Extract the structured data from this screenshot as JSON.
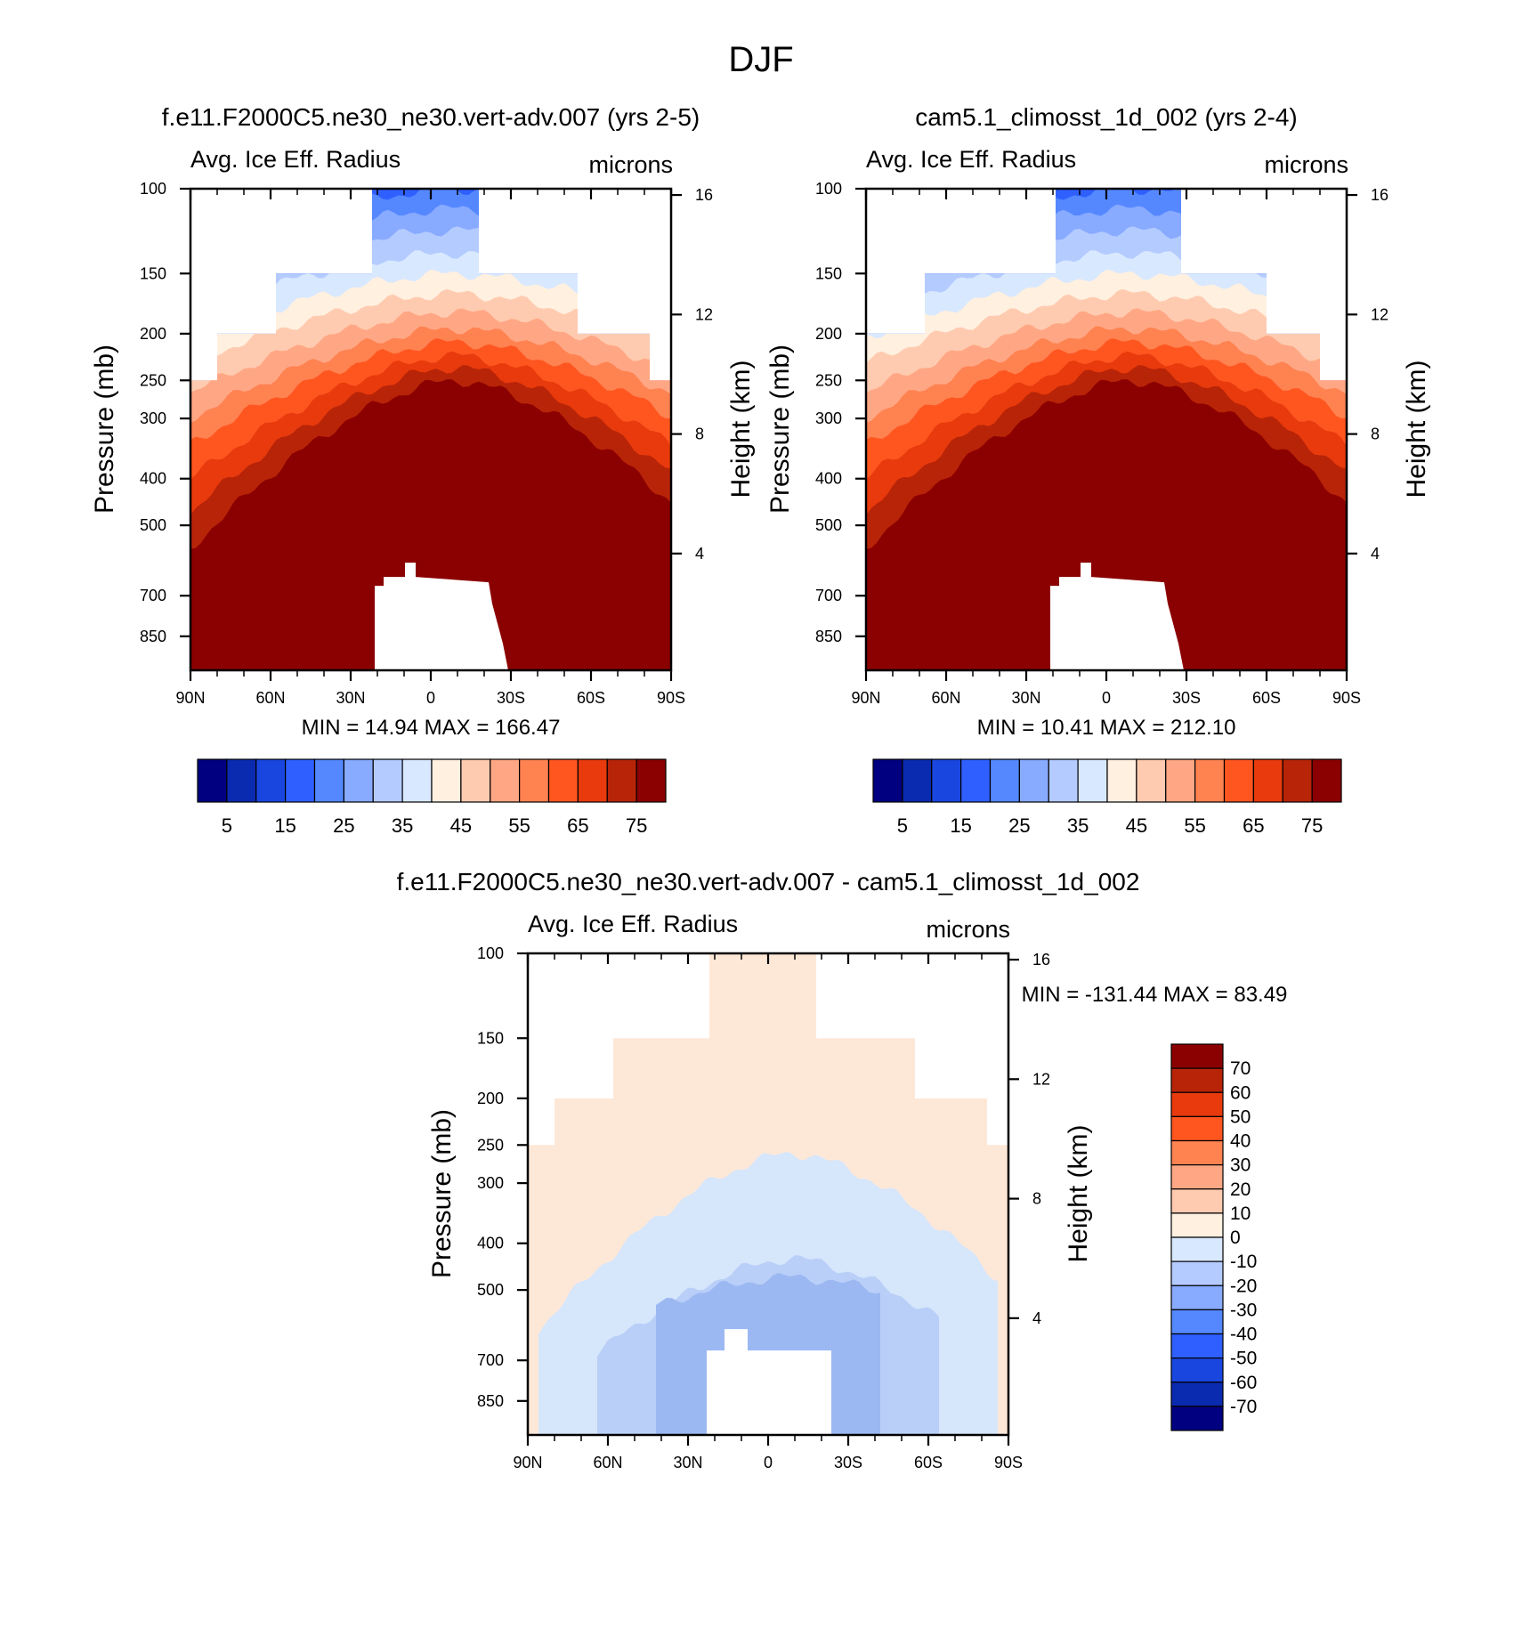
{
  "figure": {
    "title": "DJF"
  },
  "chart_data": [
    {
      "type": "heatmap",
      "title": "f.e11.F2000C5.ne30_ne30.vert-adv.007 (yrs 2-5)",
      "variable_label": "Avg. Ice Eff. Radius",
      "units_label": "microns",
      "xlabel": "",
      "ylabel": "Pressure (mb)",
      "y2label": "Height (km)",
      "x_ticks": [
        "90N",
        "60N",
        "30N",
        "0",
        "30S",
        "60S",
        "90S"
      ],
      "y_ticks": [
        100,
        150,
        200,
        250,
        300,
        400,
        500,
        700,
        850
      ],
      "y2_ticks": [
        16,
        12,
        8,
        4
      ],
      "y_scale": "log",
      "min_max_text": "MIN =  14.94  MAX = 166.47",
      "contour_levels": [
        5,
        10,
        15,
        20,
        25,
        30,
        35,
        40,
        45,
        50,
        55,
        60,
        65,
        70,
        75
      ],
      "colorbar_labels": [
        "5",
        "15",
        "25",
        "35",
        "45",
        "55",
        "65",
        "75"
      ],
      "colorbar_orientation": "horizontal",
      "colors": [
        "#000080",
        "#0a2ab0",
        "#1a46e0",
        "#2f60ff",
        "#5588ff",
        "#88aaff",
        "#b4cbff",
        "#d8e8ff",
        "#fff0e0",
        "#ffcbb0",
        "#ffa784",
        "#ff8251",
        "#ff5620",
        "#e83a0c",
        "#b82408",
        "#8b0000"
      ],
      "data_coverage": {
        "top_pressure_by_band": [
          {
            "lat_range": [
              "90N",
              "80N"
            ],
            "top_mb": 250
          },
          {
            "lat_range": [
              "80N",
              "58N"
            ],
            "top_mb": 200
          },
          {
            "lat_range": [
              "58N",
              "22N"
            ],
            "top_mb": 150
          },
          {
            "lat_range": [
              "22N",
              "18S"
            ],
            "top_mb": 100
          },
          {
            "lat_range": [
              "18S",
              "55S"
            ],
            "top_mb": 150
          },
          {
            "lat_range": [
              "55S",
              "82S"
            ],
            "top_mb": 200
          },
          {
            "lat_range": [
              "82S",
              "90S"
            ],
            "top_mb": 250
          }
        ],
        "gap_near_surface": {
          "lat_range": [
            "21N",
            "25S"
          ],
          "top_mb": 640
        }
      }
    },
    {
      "type": "heatmap",
      "title": "cam5.1_climosst_1d_002 (yrs 2-4)",
      "variable_label": "Avg. Ice Eff. Radius",
      "units_label": "microns",
      "xlabel": "",
      "ylabel": "Pressure (mb)",
      "y2label": "Height (km)",
      "x_ticks": [
        "90N",
        "60N",
        "30N",
        "0",
        "30S",
        "60S",
        "90S"
      ],
      "y_ticks": [
        100,
        150,
        200,
        250,
        300,
        400,
        500,
        700,
        850
      ],
      "y2_ticks": [
        16,
        12,
        8,
        4
      ],
      "y_scale": "log",
      "min_max_text": "MIN =  10.41  MAX = 212.10",
      "contour_levels": [
        5,
        10,
        15,
        20,
        25,
        30,
        35,
        40,
        45,
        50,
        55,
        60,
        65,
        70,
        75
      ],
      "colorbar_labels": [
        "5",
        "15",
        "25",
        "35",
        "45",
        "55",
        "65",
        "75"
      ],
      "colorbar_orientation": "horizontal",
      "colors": [
        "#000080",
        "#0a2ab0",
        "#1a46e0",
        "#2f60ff",
        "#5588ff",
        "#88aaff",
        "#b4cbff",
        "#d8e8ff",
        "#fff0e0",
        "#ffcbb0",
        "#ffa784",
        "#ff8251",
        "#ff5620",
        "#e83a0c",
        "#b82408",
        "#8b0000"
      ],
      "data_coverage": {
        "top_pressure_by_band": [
          {
            "lat_range": [
              "90N",
              "68N"
            ],
            "top_mb": 200
          },
          {
            "lat_range": [
              "68N",
              "19N"
            ],
            "top_mb": 150
          },
          {
            "lat_range": [
              "19N",
              "28S"
            ],
            "top_mb": 100
          },
          {
            "lat_range": [
              "28S",
              "60S"
            ],
            "top_mb": 150
          },
          {
            "lat_range": [
              "60S",
              "80S"
            ],
            "top_mb": 200
          },
          {
            "lat_range": [
              "80S",
              "90S"
            ],
            "top_mb": 250
          }
        ],
        "gap_near_surface": {
          "lat_range": [
            "21N",
            "25S"
          ],
          "top_mb": 640
        }
      }
    },
    {
      "type": "heatmap",
      "title": "f.e11.F2000C5.ne30_ne30.vert-adv.007 - cam5.1_climosst_1d_002",
      "variable_label": "Avg. Ice Eff. Radius",
      "units_label": "microns",
      "xlabel": "",
      "ylabel": "Pressure (mb)",
      "y2label": "Height (km)",
      "x_ticks": [
        "90N",
        "60N",
        "30N",
        "0",
        "30S",
        "60S",
        "90S"
      ],
      "y_ticks": [
        100,
        150,
        200,
        250,
        300,
        400,
        500,
        700,
        850
      ],
      "y2_ticks": [
        16,
        12,
        8,
        4
      ],
      "y_scale": "log",
      "min_max_text": "MIN = -131.44  MAX =  83.49",
      "contour_levels": [
        -70,
        -60,
        -50,
        -40,
        -30,
        -20,
        -10,
        0,
        10,
        20,
        30,
        40,
        50,
        60,
        70
      ],
      "colorbar_labels": [
        "70",
        "60",
        "50",
        "40",
        "30",
        "20",
        "10",
        "0",
        "-10",
        "-20",
        "-30",
        "-40",
        "-50",
        "-60",
        "-70"
      ],
      "colorbar_orientation": "vertical",
      "colors": [
        "#8b0000",
        "#b82408",
        "#e83a0c",
        "#ff5620",
        "#ff8251",
        "#ffa784",
        "#ffcbb0",
        "#fff0e0",
        "#d8e8ff",
        "#b4cbff",
        "#88aaff",
        "#5588ff",
        "#2f60ff",
        "#1a46e0",
        "#0a2ab0",
        "#000080"
      ],
      "data_coverage": {
        "top_pressure_by_band": [
          {
            "lat_range": [
              "90N",
              "80N"
            ],
            "top_mb": 250
          },
          {
            "lat_range": [
              "80N",
              "58N"
            ],
            "top_mb": 200
          },
          {
            "lat_range": [
              "58N",
              "22N"
            ],
            "top_mb": 150
          },
          {
            "lat_range": [
              "22N",
              "18S"
            ],
            "top_mb": 100
          },
          {
            "lat_range": [
              "18S",
              "55S"
            ],
            "top_mb": 150
          },
          {
            "lat_range": [
              "55S",
              "82S"
            ],
            "top_mb": 200
          },
          {
            "lat_range": [
              "82S",
              "90S"
            ],
            "top_mb": 250
          }
        ],
        "gap_near_surface": {
          "lat_range": [
            "21N",
            "25S"
          ],
          "top_mb": 640
        }
      }
    }
  ]
}
